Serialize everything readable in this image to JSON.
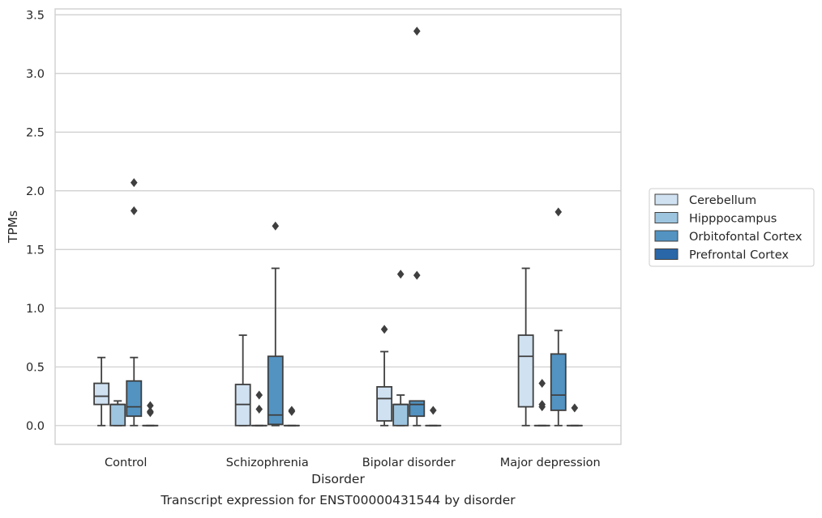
{
  "chart_data": {
    "type": "box",
    "title": "",
    "caption": "Transcript expression for ENST00000431544 by disorder",
    "xlabel": "Disorder",
    "ylabel": "TPMs",
    "ylim": [
      -0.16,
      3.55
    ],
    "yticks": [
      "0.0",
      "0.5",
      "1.0",
      "1.5",
      "2.0",
      "2.5",
      "3.0",
      "3.5"
    ],
    "ytick_values": [
      0,
      0.5,
      1.0,
      1.5,
      2.0,
      2.5,
      3.0,
      3.5
    ],
    "grid": "horizontal",
    "legend_position": "right",
    "categories": [
      "Control",
      "Schizophrenia",
      "Bipolar disorder",
      "Major depression"
    ],
    "series": [
      {
        "name": "Cerebellum",
        "color": "#d0e2f2",
        "boxes": [
          {
            "whisker_low": 0.0,
            "q1": 0.18,
            "median": 0.25,
            "q3": 0.36,
            "whisker_high": 0.58,
            "outliers": []
          },
          {
            "whisker_low": 0.0,
            "q1": 0.0,
            "median": 0.18,
            "q3": 0.35,
            "whisker_high": 0.77,
            "outliers": []
          },
          {
            "whisker_low": 0.0,
            "q1": 0.04,
            "median": 0.23,
            "q3": 0.33,
            "whisker_high": 0.63,
            "outliers": [
              0.82
            ]
          },
          {
            "whisker_low": 0.0,
            "q1": 0.16,
            "median": 0.59,
            "q3": 0.77,
            "whisker_high": 1.34,
            "outliers": []
          }
        ]
      },
      {
        "name": "Hipppocampus",
        "color": "#9dc5e0",
        "boxes": [
          {
            "whisker_low": 0.0,
            "q1": 0.0,
            "median": 0.18,
            "q3": 0.18,
            "whisker_high": 0.21,
            "outliers": []
          },
          {
            "whisker_low": 0.0,
            "q1": 0.0,
            "median": 0.0,
            "q3": 0.0,
            "whisker_high": 0.0,
            "outliers": [
              0.26,
              0.14
            ]
          },
          {
            "whisker_low": 0.0,
            "q1": 0.0,
            "median": 0.18,
            "q3": 0.18,
            "whisker_high": 0.26,
            "outliers": [
              1.29
            ]
          },
          {
            "whisker_low": 0.0,
            "q1": 0.0,
            "median": 0.0,
            "q3": 0.0,
            "whisker_high": 0.0,
            "outliers": [
              0.36,
              0.18,
              0.16
            ]
          }
        ]
      },
      {
        "name": "Orbitofontal Cortex",
        "color": "#5293c2",
        "boxes": [
          {
            "whisker_low": 0.0,
            "q1": 0.08,
            "median": 0.16,
            "q3": 0.38,
            "whisker_high": 0.58,
            "outliers": [
              2.07,
              1.83
            ]
          },
          {
            "whisker_low": 0.0,
            "q1": 0.01,
            "median": 0.09,
            "q3": 0.59,
            "whisker_high": 1.34,
            "outliers": [
              1.7
            ]
          },
          {
            "whisker_low": 0.0,
            "q1": 0.08,
            "median": 0.18,
            "q3": 0.21,
            "whisker_high": 0.21,
            "outliers": [
              1.28,
              3.36
            ]
          },
          {
            "whisker_low": 0.0,
            "q1": 0.13,
            "median": 0.26,
            "q3": 0.61,
            "whisker_high": 0.81,
            "outliers": [
              1.82
            ]
          }
        ]
      },
      {
        "name": "Prefrontal Cortex",
        "color": "#2a67a8",
        "boxes": [
          {
            "whisker_low": 0.0,
            "q1": 0.0,
            "median": 0.0,
            "q3": 0.0,
            "whisker_high": 0.0,
            "outliers": [
              0.17,
              0.12,
              0.11
            ]
          },
          {
            "whisker_low": 0.0,
            "q1": 0.0,
            "median": 0.0,
            "q3": 0.0,
            "whisker_high": 0.0,
            "outliers": [
              0.13,
              0.12
            ]
          },
          {
            "whisker_low": 0.0,
            "q1": 0.0,
            "median": 0.0,
            "q3": 0.0,
            "whisker_high": 0.0,
            "outliers": [
              0.13
            ]
          },
          {
            "whisker_low": 0.0,
            "q1": 0.0,
            "median": 0.0,
            "q3": 0.0,
            "whisker_high": 0.0,
            "outliers": [
              0.15
            ]
          }
        ]
      }
    ]
  }
}
